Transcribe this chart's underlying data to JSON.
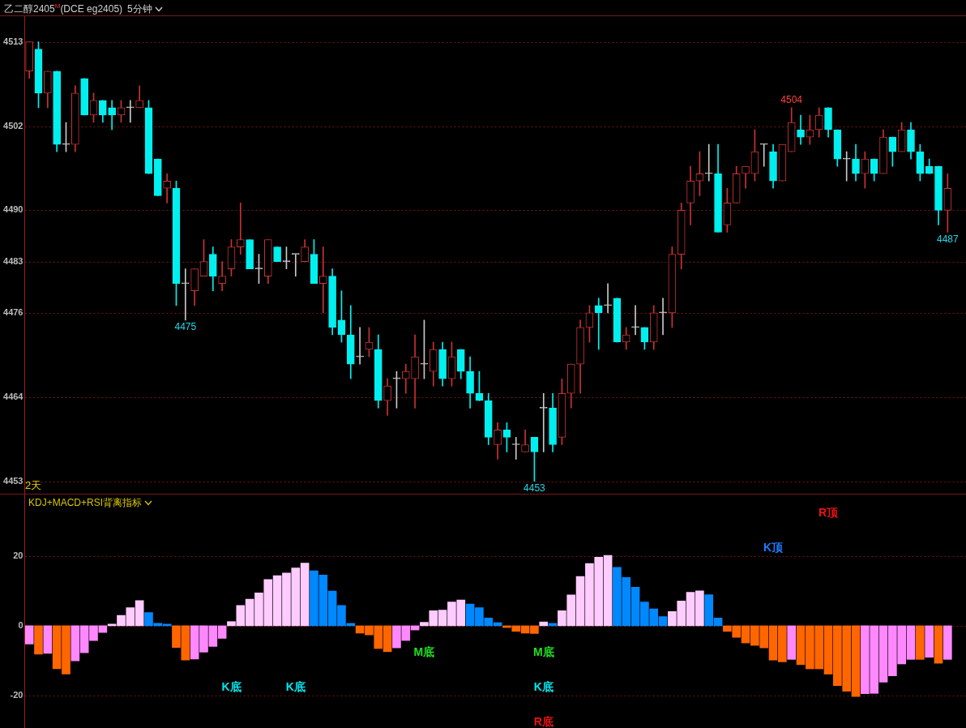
{
  "chart_data": [
    {
      "type": "candlestick",
      "title": "乙二醇2405$^{M}$(DCE eg2405)",
      "subtitle": "5分钟",
      "categories": [
        null,
        null,
        null,
        null,
        null,
        null,
        null,
        null,
        null,
        null,
        null,
        null,
        null,
        null,
        null,
        null,
        null,
        null,
        null,
        null,
        null,
        null,
        null,
        null,
        null,
        null,
        null,
        null,
        null,
        null,
        null,
        null,
        null,
        null,
        null,
        null,
        null,
        null,
        null,
        null,
        null,
        null,
        null,
        null,
        null,
        null,
        null,
        null,
        null,
        null,
        null,
        null,
        null,
        null,
        null,
        null,
        null,
        null,
        null,
        null,
        null,
        null,
        null,
        null,
        null,
        null,
        null,
        null,
        null,
        null,
        null,
        null,
        null,
        null,
        null,
        null,
        null,
        null,
        null,
        null,
        null,
        null,
        null,
        null,
        null,
        null,
        null,
        null,
        null,
        null,
        null,
        null,
        null,
        null,
        null,
        null,
        null,
        null,
        null,
        null,
        null
      ],
      "ohlc": [
        [
          4509,
          4513,
          4508,
          4513
        ],
        [
          4512,
          4513,
          4504,
          4506
        ],
        [
          4506,
          4509,
          4504,
          4509
        ],
        [
          4509,
          4509,
          4498,
          4499
        ],
        [
          4499,
          4502,
          4498,
          4499
        ],
        [
          4499,
          4507,
          4498,
          4506
        ],
        [
          4508,
          4508,
          4503,
          4503
        ],
        [
          4503,
          4506,
          4502,
          4505
        ],
        [
          4505,
          4505,
          4502,
          4503
        ],
        [
          4504,
          4505,
          4501,
          4503
        ],
        [
          4503,
          4505,
          4502,
          4504
        ],
        [
          4504,
          4505,
          4502,
          4504
        ],
        [
          4504,
          4507,
          4504,
          4505
        ],
        [
          4504,
          4505,
          4495,
          4495
        ],
        [
          4497,
          4497,
          4492,
          4492
        ],
        [
          4493,
          4495,
          4491,
          4494
        ],
        [
          4493,
          4494,
          4477,
          4480
        ],
        [
          4480,
          4482,
          4475,
          4480
        ],
        [
          4479,
          4482,
          4477,
          4482
        ],
        [
          4481,
          4486,
          4481,
          4483
        ],
        [
          4484,
          4485,
          4479,
          4481
        ],
        [
          4480,
          4483,
          4479,
          4481
        ],
        [
          4482,
          4486,
          4481,
          4485
        ],
        [
          4485,
          4491,
          4484,
          4486
        ],
        [
          4486,
          4486,
          4482,
          4482
        ],
        [
          4482,
          4484,
          4480,
          4482
        ],
        [
          4481,
          4486,
          4480,
          4486
        ],
        [
          4485,
          4485,
          4483,
          4483
        ],
        [
          4483,
          4485,
          4482,
          4483
        ],
        [
          4484,
          4484,
          4481,
          4484
        ],
        [
          4483,
          4486,
          4483,
          4485
        ],
        [
          4484,
          4486,
          4480,
          4480
        ],
        [
          4480,
          4485,
          4476,
          4481
        ],
        [
          4481,
          4482,
          4473,
          4474
        ],
        [
          4475,
          4479,
          4472,
          4473
        ],
        [
          4473,
          4477,
          4467,
          4469
        ],
        [
          4470,
          4474,
          4469,
          4470
        ],
        [
          4471,
          4474,
          4470,
          4472
        ],
        [
          4471,
          4473,
          4463,
          4464
        ],
        [
          4464,
          4467,
          4462,
          4466
        ],
        [
          4467,
          4468,
          4463,
          4467
        ],
        [
          4467,
          4469,
          4465,
          4468
        ],
        [
          4467,
          4473,
          4463,
          4470
        ],
        [
          4469,
          4475,
          4467,
          4469
        ],
        [
          4468,
          4472,
          4466,
          4471
        ],
        [
          4471,
          4472,
          4466,
          4467
        ],
        [
          4467,
          4472,
          4466,
          4470
        ],
        [
          4471,
          4471,
          4467,
          4468
        ],
        [
          4468,
          4470,
          4463,
          4465
        ],
        [
          4465,
          4468,
          4464,
          4464
        ],
        [
          4464,
          4465,
          4458,
          4459
        ],
        [
          4458,
          4461,
          4456,
          4460
        ],
        [
          4460,
          4461,
          4457,
          4459
        ],
        [
          4458,
          4459,
          4456,
          4458
        ],
        [
          4457,
          4460,
          4457,
          4458
        ],
        [
          4459,
          4459,
          4453,
          4457
        ],
        [
          4463,
          4465,
          4457,
          4463
        ],
        [
          4463,
          4465,
          4457,
          4458
        ],
        [
          4459,
          4467,
          4458,
          4465
        ],
        [
          4465,
          4469,
          4463,
          4469
        ],
        [
          4469,
          4475,
          4465,
          4474
        ],
        [
          4474,
          4477,
          4472,
          4476
        ],
        [
          4477,
          4478,
          4471,
          4476
        ],
        [
          4477,
          4480,
          4476,
          4477
        ],
        [
          4478,
          4478,
          4472,
          4472
        ],
        [
          4472,
          4474,
          4471,
          4473
        ],
        [
          4474,
          4477,
          4473,
          4474
        ],
        [
          4474,
          4474,
          4471,
          4472
        ],
        [
          4472,
          4477,
          4471,
          4476
        ],
        [
          4476,
          4478,
          4473,
          4476
        ],
        [
          4476,
          4485,
          4474,
          4484
        ],
        [
          4484,
          4491,
          4482,
          4490
        ],
        [
          4491,
          4496,
          4488,
          4494
        ],
        [
          4494,
          4498,
          4492,
          4495
        ],
        [
          4495,
          4499,
          4494,
          4495
        ],
        [
          4495,
          4499,
          4487,
          4487
        ],
        [
          4488,
          4493,
          4487,
          4491
        ],
        [
          4491,
          4496,
          4491,
          4495
        ],
        [
          4495,
          4496,
          4493,
          4496
        ],
        [
          4495,
          4501,
          4494,
          4498
        ],
        [
          4499,
          4499,
          4496,
          4499
        ],
        [
          4498,
          4499,
          4493,
          4494
        ],
        [
          4494,
          4499,
          4494,
          4499
        ],
        [
          4498,
          4504,
          4498,
          4502
        ],
        [
          4501,
          4503,
          4499,
          4500
        ],
        [
          4500,
          4503,
          4499,
          4501
        ],
        [
          4501,
          4504,
          4500,
          4503
        ],
        [
          4504,
          4504,
          4500,
          4501
        ],
        [
          4501,
          4501,
          4496,
          4497
        ],
        [
          4497,
          4498,
          4494,
          4497
        ],
        [
          4497,
          4499,
          4494,
          4495
        ],
        [
          4495,
          4498,
          4493,
          4497
        ],
        [
          4497,
          4497,
          4494,
          4495
        ],
        [
          4495,
          4501,
          4495,
          4500
        ],
        [
          4500,
          4500,
          4496,
          4498
        ],
        [
          4498,
          4502,
          4498,
          4501
        ],
        [
          4501,
          4502,
          4497,
          4498
        ],
        [
          4498,
          4499,
          4494,
          4495
        ],
        [
          4496,
          4497,
          4495,
          4495
        ],
        [
          4496,
          4496,
          4488,
          4490
        ],
        [
          4490,
          4495,
          4487,
          4493
        ]
      ],
      "colors": [
        "#c83232",
        "#00f0f0",
        "#c83232",
        "#00f0f0",
        "#c8c8c8",
        "#c83232",
        "#00f0f0",
        "#c83232",
        "#00f0f0",
        "#00f0f0",
        "#c83232",
        "#c8c8c8",
        "#c83232",
        "#00f0f0",
        "#00f0f0",
        "#c83232",
        "#00f0f0",
        "#c8c8c8",
        "#c83232",
        "#c83232",
        "#00f0f0",
        "#c83232",
        "#c83232",
        "#c83232",
        "#00f0f0",
        "#c8c8c8",
        "#c83232",
        "#00f0f0",
        "#c8c8c8",
        "#c8c8c8",
        "#c83232",
        "#00f0f0",
        "#c83232",
        "#00f0f0",
        "#00f0f0",
        "#00f0f0",
        "#c8c8c8",
        "#c83232",
        "#00f0f0",
        "#c83232",
        "#c8c8c8",
        "#c83232",
        "#c83232",
        "#c8c8c8",
        "#c83232",
        "#00f0f0",
        "#c83232",
        "#00f0f0",
        "#00f0f0",
        "#00f0f0",
        "#00f0f0",
        "#c83232",
        "#00f0f0",
        "#c8c8c8",
        "#c83232",
        "#00f0f0",
        "#c8c8c8",
        "#00f0f0",
        "#c83232",
        "#c83232",
        "#c83232",
        "#c83232",
        "#00f0f0",
        "#c8c8c8",
        "#00f0f0",
        "#c83232",
        "#c8c8c8",
        "#00f0f0",
        "#c83232",
        "#c8c8c8",
        "#c83232",
        "#c83232",
        "#c83232",
        "#c83232",
        "#c8c8c8",
        "#00f0f0",
        "#c83232",
        "#c83232",
        "#c83232",
        "#c83232",
        "#c8c8c8",
        "#00f0f0",
        "#c83232",
        "#c83232",
        "#00f0f0",
        "#c83232",
        "#c83232",
        "#00f0f0",
        "#00f0f0",
        "#c8c8c8",
        "#00f0f0",
        "#c83232",
        "#00f0f0",
        "#c83232",
        "#00f0f0",
        "#c83232",
        "#00f0f0",
        "#00f0f0",
        "#00f0f0",
        "#00f0f0",
        "#c83232"
      ],
      "ylim": [
        4451.3,
        4516.5
      ],
      "yticks": [
        4453,
        {
          "value": 4464.5,
          "label": "4464"
        },
        4476,
        4483,
        4490,
        {
          "value": 4501.5,
          "label": "4502"
        },
        4513
      ],
      "grid": "y",
      "tick_labels": "y",
      "annotations": [
        "2天",
        {
          "text": "4475",
          "y": 4475
        },
        {
          "text": "4453",
          "y": 4453
        },
        {
          "text": "4504",
          "y": 4504
        },
        {
          "text": "4487",
          "y": 4487
        }
      ]
    },
    {
      "type": "bar",
      "title": "KDJ+MACD+RSI背离指标",
      "categories": [
        null,
        null,
        null,
        null,
        null,
        null,
        null,
        null,
        null,
        null,
        null,
        null,
        null,
        null,
        null,
        null,
        null,
        null,
        null,
        null,
        null,
        null,
        null,
        null,
        null,
        null,
        null,
        null,
        null,
        null,
        null,
        null,
        null,
        null,
        null,
        null,
        null,
        null,
        null,
        null,
        null,
        null,
        null,
        null,
        null,
        null,
        null,
        null,
        null,
        null,
        null,
        null,
        null,
        null,
        null,
        null,
        null,
        null,
        null,
        null,
        null,
        null,
        null,
        null,
        null,
        null,
        null,
        null,
        null,
        null,
        null,
        null,
        null,
        null,
        null,
        null,
        null,
        null,
        null,
        null,
        null,
        null,
        null,
        null,
        null,
        null,
        null,
        null,
        null,
        null,
        null,
        null,
        null,
        null,
        null,
        null,
        null,
        null,
        null,
        null,
        null
      ],
      "values": [
        -5.2,
        -8.1,
        -7.9,
        -12.3,
        -13.8,
        -10.0,
        -7.7,
        -4.2,
        -1.9,
        0.5,
        3.0,
        5.2,
        7.2,
        3.8,
        0.7,
        0.5,
        -6.2,
        -9.8,
        -9.5,
        -7.5,
        -5.9,
        -3.6,
        1.2,
        5.8,
        7.6,
        9.4,
        13.2,
        14.3,
        15.1,
        16.5,
        17.9,
        15.7,
        14.5,
        9.9,
        5.8,
        0.7,
        -2.1,
        -2.6,
        -6.5,
        -7.4,
        -6.3,
        -4.2,
        -1.2,
        1.0,
        4.3,
        4.5,
        6.8,
        7.4,
        6.2,
        5.2,
        2.2,
        0.9,
        -0.5,
        -1.6,
        -2.1,
        -2.2,
        1.1,
        0.7,
        4.3,
        8.8,
        14.1,
        17.8,
        19.6,
        20.1,
        16.7,
        13.8,
        11.0,
        6.8,
        4.8,
        2.6,
        4.1,
        7.1,
        9.6,
        10.0,
        8.9,
        2.2,
        -1.6,
        -3.3,
        -4.9,
        -5.6,
        -6.3,
        -9.8,
        -10.3,
        -9.6,
        -11.1,
        -12.3,
        -12.3,
        -13.8,
        -17.1,
        -18.7,
        -20.2,
        -19.4,
        -19.3,
        -16.1,
        -14.3,
        -10.9,
        -9.6,
        -9.6,
        -9.0,
        -10.7,
        -9.6
      ],
      "colors": [
        "#ff88ff",
        "#ff6600",
        "#ff88ff",
        "#ff6600",
        "#ff6600",
        "#ff88ff",
        "#ff88ff",
        "#ff88ff",
        "#ff88ff",
        "#ffccff",
        "#ffccff",
        "#ffccff",
        "#ffccff",
        "#0088ff",
        "#0088ff",
        "#0088ff",
        "#ff6600",
        "#ff6600",
        "#ff88ff",
        "#ff88ff",
        "#ff88ff",
        "#ff88ff",
        "#ffccff",
        "#ffccff",
        "#ffccff",
        "#ffccff",
        "#ffccff",
        "#ffccff",
        "#ffccff",
        "#ffccff",
        "#ffccff",
        "#0088ff",
        "#0088ff",
        "#0088ff",
        "#0088ff",
        "#0088ff",
        "#ff6600",
        "#ff6600",
        "#ff6600",
        "#ff6600",
        "#ff88ff",
        "#ff88ff",
        "#ff88ff",
        "#ffccff",
        "#ffccff",
        "#ffccff",
        "#ffccff",
        "#ffccff",
        "#0088ff",
        "#0088ff",
        "#0088ff",
        "#0088ff",
        "#ff6600",
        "#ff6600",
        "#ff6600",
        "#ff6600",
        "#ffccff",
        "#0088ff",
        "#ffccff",
        "#ffccff",
        "#ffccff",
        "#ffccff",
        "#ffccff",
        "#ffccff",
        "#0088ff",
        "#0088ff",
        "#0088ff",
        "#0088ff",
        "#0088ff",
        "#0088ff",
        "#ffccff",
        "#ffccff",
        "#ffccff",
        "#ffccff",
        "#0088ff",
        "#0088ff",
        "#ff6600",
        "#ff6600",
        "#ff6600",
        "#ff6600",
        "#ff6600",
        "#ff6600",
        "#ff6600",
        "#ff88ff",
        "#ff6600",
        "#ff6600",
        "#ff6600",
        "#ff6600",
        "#ff6600",
        "#ff6600",
        "#ff6600",
        "#ff88ff",
        "#ff88ff",
        "#ff88ff",
        "#ff88ff",
        "#ff88ff",
        "#ff88ff",
        "#ff6600",
        "#ff88ff",
        "#ff6600",
        "#ff88ff"
      ],
      "ylim": [
        -29.2,
        37.5
      ],
      "yticks": [
        -20,
        0,
        20
      ],
      "grid": "y",
      "tick_labels": "y",
      "annotations": [
        "K底",
        "K底",
        "M底",
        "M底",
        "K底",
        "R底",
        "K顶",
        "R顶"
      ]
    }
  ]
}
